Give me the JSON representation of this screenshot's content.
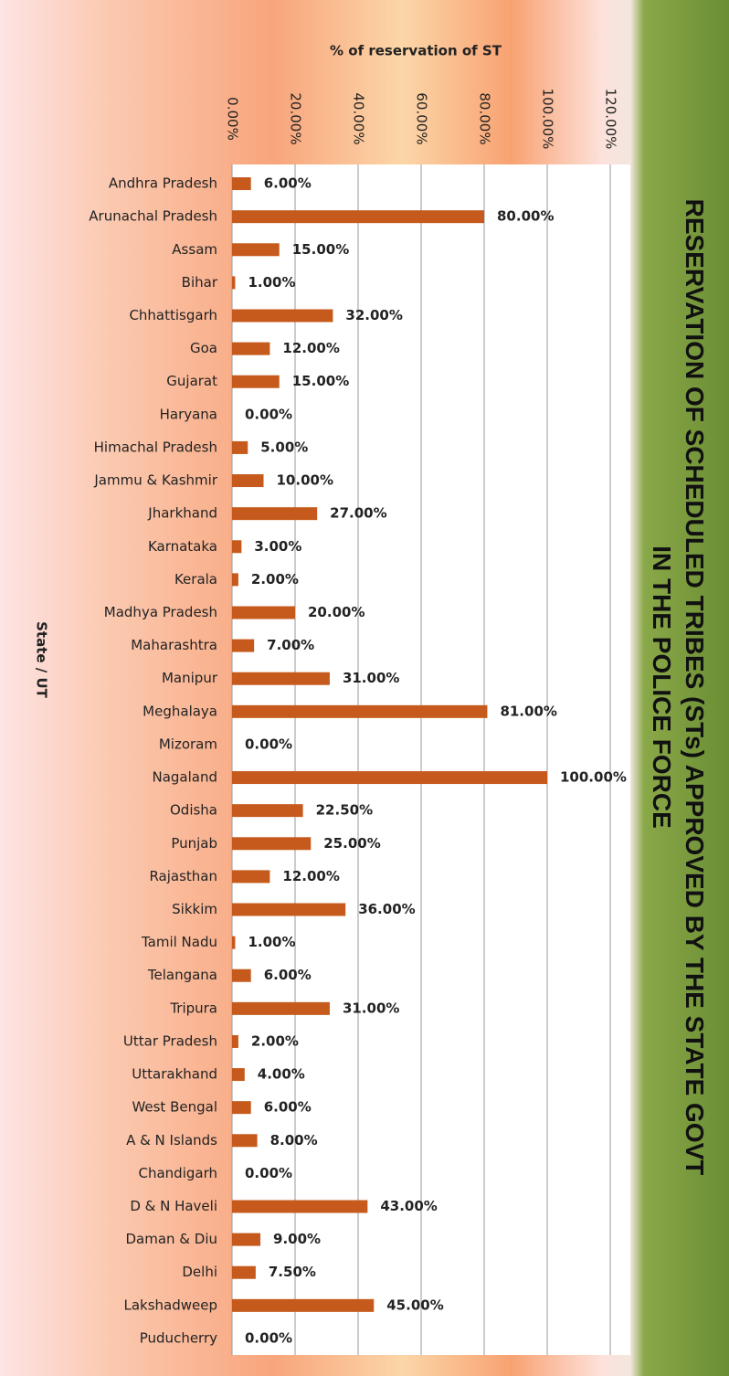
{
  "chart_data": {
    "type": "bar",
    "orientation": "horizontal",
    "title": "RESERVATION OF SCHEDULED TRIBES (STs) APPROVED BY THE STATE GOVT IN THE POLICE FORCE",
    "x_label": "% of reservation of ST",
    "y_label": "State / UT",
    "color": "#c55a1c",
    "grid": true,
    "categories": [
      "Andhra Pradesh",
      "Arunachal Pradesh",
      "Assam",
      "Bihar",
      "Chhattisgarh",
      "Goa",
      "Gujarat",
      "Haryana",
      "Himachal Pradesh",
      "Jammu & Kashmir",
      "Jharkhand",
      "Karnataka",
      "Kerala",
      "Madhya Pradesh",
      "Maharashtra",
      "Manipur",
      "Meghalaya",
      "Mizoram",
      "Nagaland",
      "Odisha",
      "Punjab",
      "Rajasthan",
      "Sikkim",
      "Tamil Nadu",
      "Telangana",
      "Tripura",
      "Uttar Pradesh",
      "Uttarakhand",
      "West Bengal",
      "A & N Islands",
      "Chandigarh",
      "D & N Haveli",
      "Daman & Diu",
      "Delhi",
      "Lakshadweep",
      "Puducherry"
    ],
    "values": [
      6,
      80,
      15,
      1,
      32,
      12,
      15,
      0,
      5,
      10,
      27,
      3,
      2,
      20,
      7,
      31,
      81,
      0,
      100,
      22.5,
      25,
      12,
      36,
      1,
      6,
      31,
      2,
      4,
      6,
      8,
      0,
      43,
      9,
      7.5,
      45,
      0
    ],
    "value_labels": [
      "6.00%",
      "80.00%",
      "15.00%",
      "1.00%",
      "32.00%",
      "12.00%",
      "15.00%",
      "0.00%",
      "5.00%",
      "10.00%",
      "27.00%",
      "3.00%",
      "2.00%",
      "20.00%",
      "7.00%",
      "31.00%",
      "81.00%",
      "0.00%",
      "100.00%",
      "22.50%",
      "25.00%",
      "12.00%",
      "36.00%",
      "1.00%",
      "6.00%",
      "31.00%",
      "2.00%",
      "4.00%",
      "6.00%",
      "8.00%",
      "0.00%",
      "43.00%",
      "9.00%",
      "7.50%",
      "45.00%",
      "0.00%"
    ],
    "xlim": [
      0,
      120
    ],
    "xticks": [
      {
        "value": 0,
        "label": "0.00%"
      },
      {
        "value": 20,
        "label": "20.00%"
      },
      {
        "value": 40,
        "label": "40.00%"
      },
      {
        "value": 60,
        "label": "60.00%"
      },
      {
        "value": 80,
        "label": "80.00%"
      },
      {
        "value": 100,
        "label": "100.00%"
      },
      {
        "value": 120,
        "label": "120.00%"
      }
    ]
  }
}
